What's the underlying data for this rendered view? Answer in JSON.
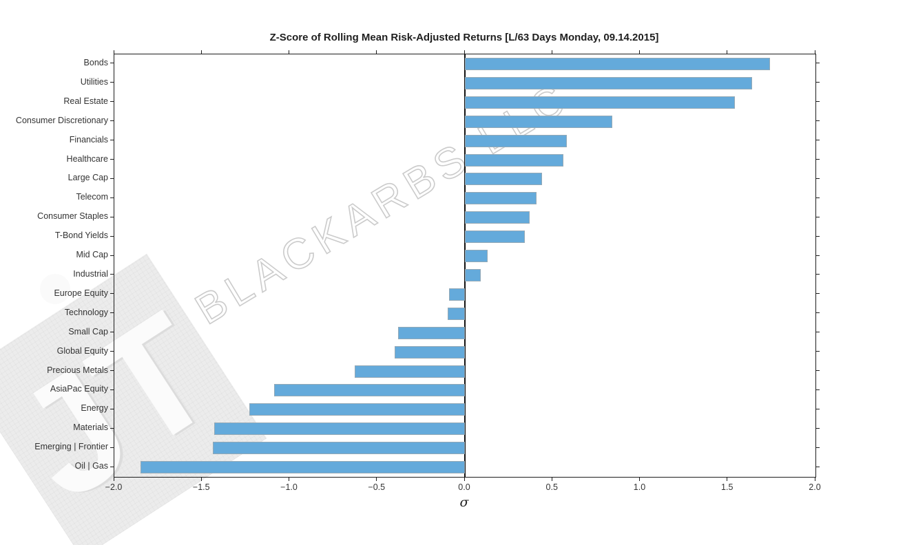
{
  "title": "Z-Score of Rolling Mean Risk-Adjusted Returns [L/63 Days Monday, 09.14.2015]",
  "watermark": {
    "text": "BLACKARBS LLC",
    "logo_text": "JT"
  },
  "chart_data": {
    "type": "bar",
    "orientation": "horizontal",
    "title": "Z-Score of Rolling Mean Risk-Adjusted Returns [L/63 Days Monday, 09.14.2015]",
    "xlabel": "σ",
    "ylabel": "",
    "xlim": [
      -2.0,
      2.0
    ],
    "xticks": [
      -2.0,
      -1.5,
      -1.0,
      -0.5,
      0.0,
      0.5,
      1.0,
      1.5,
      2.0
    ],
    "xtick_labels": [
      "−2.0",
      "−1.5",
      "−1.0",
      "−0.5",
      "0.0",
      "0.5",
      "1.0",
      "1.5",
      "2.0"
    ],
    "grid": false,
    "legend": false,
    "zero_line": true,
    "bar_color": "#64aadb",
    "categories": [
      "Bonds",
      "Utilities",
      "Real Estate",
      "Consumer Discretionary",
      "Financials",
      "Healthcare",
      "Large Cap",
      "Telecom",
      "Consumer Staples",
      "T-Bond Yields",
      "Mid Cap",
      "Industrial",
      "Europe Equity",
      "Technology",
      "Small Cap",
      "Global Equity",
      "Precious Metals",
      "AsiaPac Equity",
      "Energy",
      "Materials",
      "Emerging | Frontier",
      "Oil | Gas"
    ],
    "values": [
      1.74,
      1.64,
      1.54,
      0.84,
      0.58,
      0.56,
      0.44,
      0.41,
      0.37,
      0.34,
      0.13,
      0.09,
      -0.09,
      -0.1,
      -0.38,
      -0.4,
      -0.63,
      -1.09,
      -1.23,
      -1.43,
      -1.44,
      -1.85
    ]
  }
}
